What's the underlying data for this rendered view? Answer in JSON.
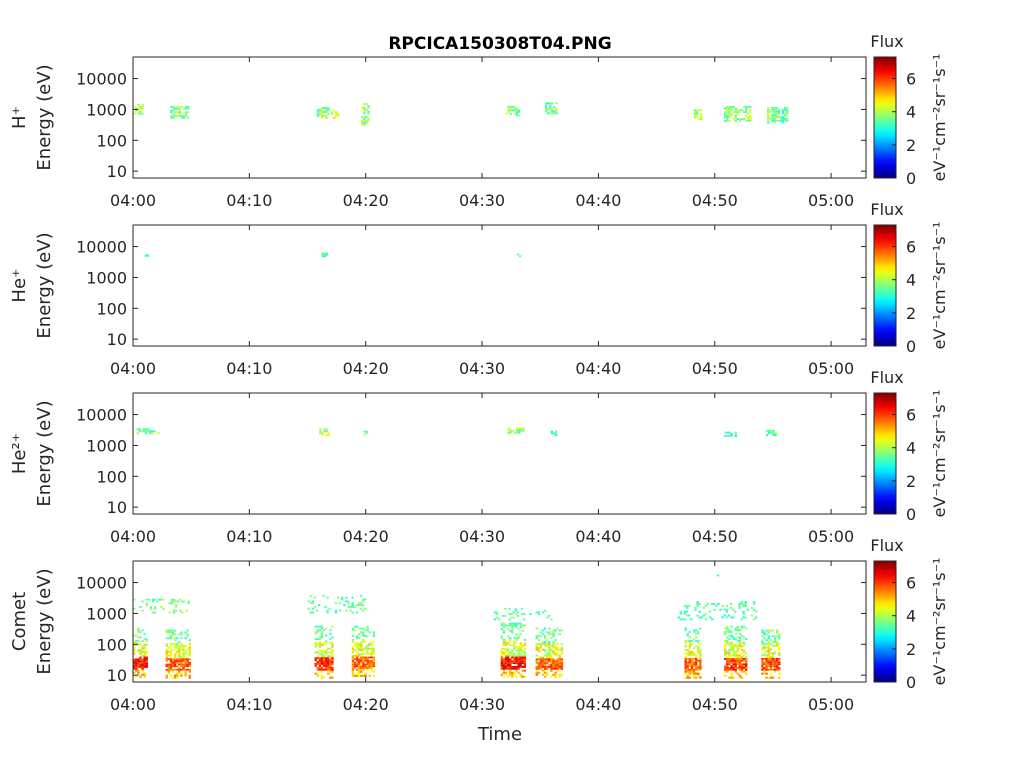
{
  "chart_data": {
    "type": "heatmap",
    "title": "RPCICA150308T04.PNG",
    "xlabel": "Time",
    "x_ticks": [
      "04:00",
      "04:10",
      "04:20",
      "04:30",
      "04:40",
      "04:50",
      "05:00"
    ],
    "xlim_minutes": [
      0,
      63
    ],
    "yscale": "log",
    "ylim": [
      6,
      50000
    ],
    "y_ticks": [
      "10000",
      "1000",
      "100",
      "10"
    ],
    "y_tick_values": [
      10000,
      1000,
      100,
      10
    ],
    "colorbar": {
      "label": "Flux",
      "units": "eV⁻¹cm⁻²sr⁻¹s⁻¹",
      "range": [
        0,
        7.3
      ],
      "ticks": [
        "0",
        "2",
        "4",
        "6"
      ],
      "tick_values": [
        0,
        2,
        4,
        6
      ],
      "colormap": "jet"
    },
    "panels": [
      {
        "name": "H+",
        "ylabel_species": "H⁺",
        "ylabel_units": "Energy (eV)",
        "patches": [
          {
            "t": [
              0.0,
              0.8
            ],
            "e": [
              600,
              1500
            ],
            "v": 3.8
          },
          {
            "t": [
              3.2,
              4.8
            ],
            "e": [
              500,
              1300
            ],
            "v": 3.6
          },
          {
            "t": [
              15.8,
              16.8
            ],
            "e": [
              500,
              1200
            ],
            "v": 3.8
          },
          {
            "t": [
              17.0,
              17.6
            ],
            "e": [
              500,
              1000
            ],
            "v": 4.2
          },
          {
            "t": [
              19.6,
              20.3
            ],
            "e": [
              300,
              1600
            ],
            "v": 4.0
          },
          {
            "t": [
              32.0,
              33.1
            ],
            "e": [
              600,
              1300
            ],
            "v": 3.7
          },
          {
            "t": [
              35.4,
              36.4
            ],
            "e": [
              700,
              1700
            ],
            "v": 3.5
          },
          {
            "t": [
              48.2,
              48.8
            ],
            "e": [
              450,
              1000
            ],
            "v": 3.8
          },
          {
            "t": [
              50.8,
              53.0
            ],
            "e": [
              400,
              1300
            ],
            "v": 3.7
          },
          {
            "t": [
              54.5,
              56.2
            ],
            "e": [
              350,
              1200
            ],
            "v": 3.6
          }
        ]
      },
      {
        "name": "He+",
        "ylabel_species": "He⁺",
        "ylabel_units": "Energy (eV)",
        "patches": [
          {
            "t": [
              1.0,
              1.3
            ],
            "e": [
              4000,
              5500
            ],
            "v": 3.0
          },
          {
            "t": [
              16.2,
              16.6
            ],
            "e": [
              4000,
              6500
            ],
            "v": 3.2
          },
          {
            "t": [
              32.8,
              33.3
            ],
            "e": [
              4500,
              6000
            ],
            "v": 3.0
          }
        ]
      },
      {
        "name": "He2+",
        "ylabel_species": "He²⁺",
        "ylabel_units": "Energy (eV)",
        "patches": [
          {
            "t": [
              0.3,
              2.2
            ],
            "e": [
              2300,
              3600
            ],
            "v": 3.7
          },
          {
            "t": [
              16.0,
              16.8
            ],
            "e": [
              2000,
              3600
            ],
            "v": 3.8
          },
          {
            "t": [
              19.8,
              20.1
            ],
            "e": [
              2100,
              3000
            ],
            "v": 3.5
          },
          {
            "t": [
              32.2,
              33.5
            ],
            "e": [
              2400,
              3800
            ],
            "v": 3.8
          },
          {
            "t": [
              35.9,
              36.3
            ],
            "e": [
              2000,
              3000
            ],
            "v": 3.3
          },
          {
            "t": [
              50.8,
              51.8
            ],
            "e": [
              1900,
              2800
            ],
            "v": 3.2
          },
          {
            "t": [
              54.4,
              55.2
            ],
            "e": [
              2000,
              3200
            ],
            "v": 3.4
          }
        ]
      },
      {
        "name": "Comet",
        "ylabel_species": "Comet",
        "ylabel_units": "Energy (eV)",
        "bursts": [
          {
            "t": [
              0.0,
              1.2
            ],
            "e_hot": [
              15,
              40
            ],
            "v_hot": 6.8,
            "e_mid": [
              40,
              120
            ],
            "e_cool": [
              120,
              350
            ]
          },
          {
            "t": [
              2.8,
              4.8
            ],
            "e_hot": [
              14,
              35
            ],
            "v_hot": 6.4,
            "e_mid": [
              35,
              110
            ],
            "e_cool": [
              110,
              300
            ]
          },
          {
            "t": [
              15.6,
              17.2
            ],
            "e_hot": [
              14,
              38
            ],
            "v_hot": 6.6,
            "e_mid": [
              38,
              120
            ],
            "e_cool": [
              120,
              400
            ]
          },
          {
            "t": [
              18.8,
              20.6
            ],
            "e_hot": [
              16,
              40
            ],
            "v_hot": 6.2,
            "e_mid": [
              40,
              130
            ],
            "e_cool": [
              130,
              400
            ]
          },
          {
            "t": [
              31.6,
              33.6
            ],
            "e_hot": [
              15,
              40
            ],
            "v_hot": 6.9,
            "e_mid": [
              40,
              130
            ],
            "e_cool": [
              130,
              500
            ]
          },
          {
            "t": [
              34.6,
              36.8
            ],
            "e_hot": [
              15,
              35
            ],
            "v_hot": 6.3,
            "e_mid": [
              35,
              110
            ],
            "e_cool": [
              110,
              350
            ]
          },
          {
            "t": [
              47.4,
              48.8
            ],
            "e_hot": [
              14,
              36
            ],
            "v_hot": 6.2,
            "e_mid": [
              36,
              120
            ],
            "e_cool": [
              120,
              350
            ]
          },
          {
            "t": [
              50.8,
              52.6
            ],
            "e_hot": [
              14,
              36
            ],
            "v_hot": 6.5,
            "e_mid": [
              36,
              120
            ],
            "e_cool": [
              120,
              400
            ]
          },
          {
            "t": [
              54.0,
              55.6
            ],
            "e_hot": [
              14,
              36
            ],
            "v_hot": 6.4,
            "e_mid": [
              36,
              110
            ],
            "e_cool": [
              110,
              300
            ]
          }
        ],
        "sparse": [
          {
            "t": [
              0.0,
              4.8
            ],
            "e": [
              1000,
              3000
            ],
            "v": 3.6
          },
          {
            "t": [
              15.0,
              20.0
            ],
            "e": [
              1000,
              4000
            ],
            "v": 3.4
          },
          {
            "t": [
              31.0,
              36.0
            ],
            "e": [
              600,
              1500
            ],
            "v": 3.4
          },
          {
            "t": [
              46.8,
              53.5
            ],
            "e": [
              600,
              2500
            ],
            "v": 3.3
          },
          {
            "t": [
              50.0,
              50.4
            ],
            "e": [
              14000,
              18000
            ],
            "v": 3.2
          }
        ]
      }
    ]
  }
}
